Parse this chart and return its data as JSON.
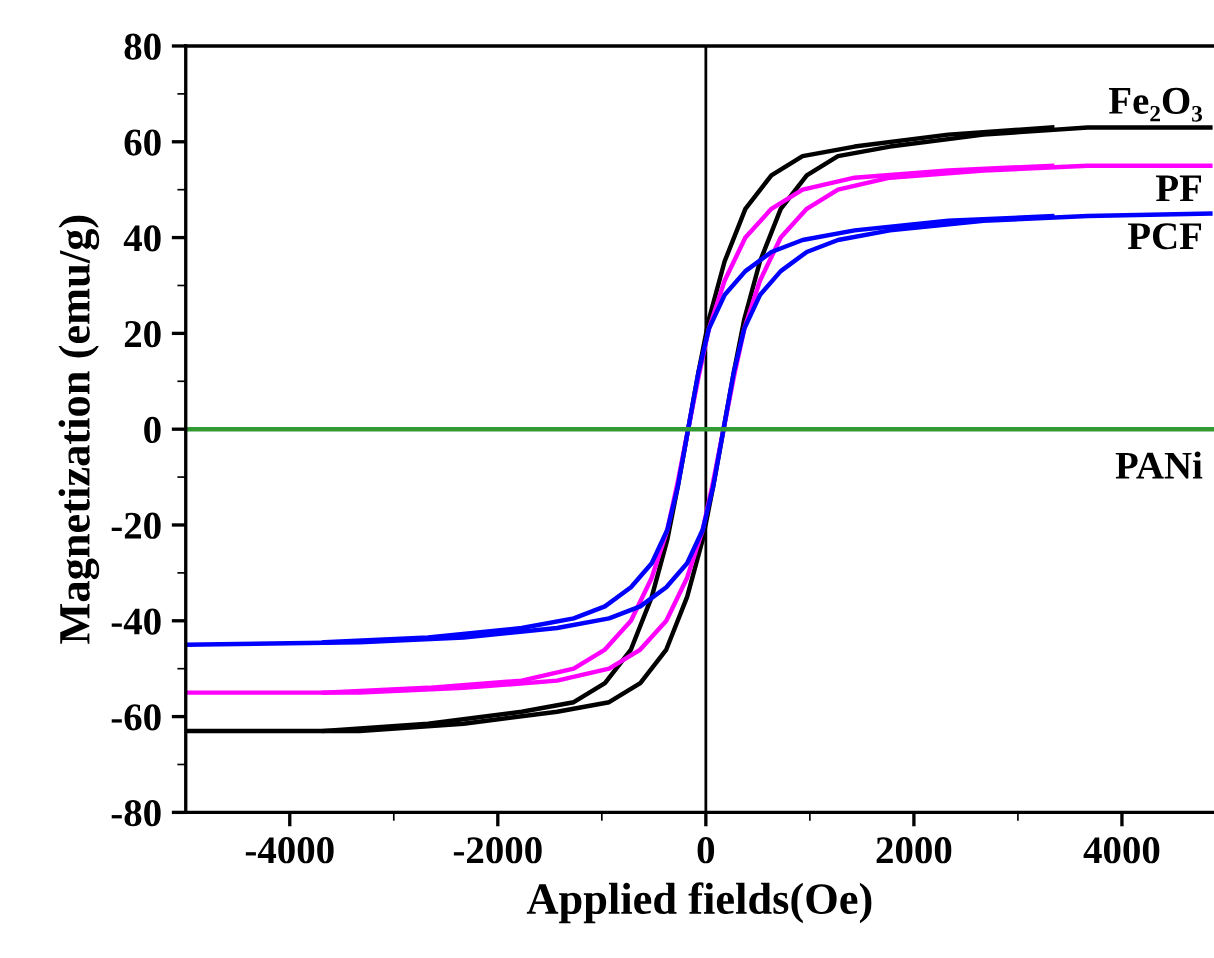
{
  "chart_data": {
    "type": "line",
    "xlabel": "Applied fields(Oe)",
    "ylabel": "Magnetization (emu/g)",
    "xlim": [
      -5000,
      4885
    ],
    "ylim": [
      -80,
      80
    ],
    "xticks": [
      -4000,
      -2000,
      0,
      2000,
      4000
    ],
    "yticks": [
      -80,
      -60,
      -40,
      -20,
      0,
      20,
      40,
      60,
      80
    ],
    "grid": false,
    "legend": false,
    "marker": "none",
    "line_style": "solid",
    "ref_lines": [
      {
        "axis": "x",
        "value": 0,
        "color": "#000000"
      }
    ],
    "series": [
      {
        "name": "Fe₂O₃",
        "color": "#000000",
        "x": [
          -5000,
          -3330,
          -2330,
          -1430,
          -930,
          -630,
          -380,
          -180,
          -30,
          70,
          170,
          270,
          370,
          520,
          720,
          970,
          1270,
          1770,
          2670,
          3670,
          4850
        ],
        "values": [
          -63,
          -63,
          -61.5,
          -59,
          -57,
          -53,
          -46,
          -35,
          -23,
          -12,
          0,
          12,
          23,
          35,
          46,
          53,
          57,
          59,
          61.5,
          63,
          63
        ]
      },
      {
        "color": "#000000",
        "x": [
          -3670,
          -2670,
          -1770,
          -1270,
          -970,
          -720,
          -520,
          -370,
          -270,
          -170,
          -70,
          30,
          180,
          380,
          630,
          930,
          1430,
          2330,
          3330
        ],
        "values": [
          -63,
          -61.5,
          -59,
          -57,
          -53,
          -46,
          -35,
          -23,
          -12,
          0,
          12,
          23,
          35,
          46,
          53,
          57,
          59,
          61.5,
          63
        ]
      },
      {
        "name": "PF",
        "color": "#ff00ff",
        "x": [
          -5000,
          -3330,
          -2330,
          -1430,
          -930,
          -630,
          -380,
          -180,
          -30,
          70,
          170,
          270,
          370,
          520,
          720,
          970,
          1270,
          1770,
          2670,
          3670,
          4850
        ],
        "values": [
          -55,
          -55,
          -54,
          -52.5,
          -50,
          -46,
          -40,
          -31,
          -21,
          -11,
          0,
          11,
          21,
          31,
          40,
          46,
          50,
          52.5,
          54,
          55,
          55
        ]
      },
      {
        "color": "#ff00ff",
        "x": [
          -3670,
          -2670,
          -1770,
          -1270,
          -970,
          -720,
          -520,
          -370,
          -270,
          -170,
          -70,
          30,
          180,
          380,
          630,
          930,
          1430,
          2330,
          3330
        ],
        "values": [
          -55,
          -54,
          -52.5,
          -50,
          -46,
          -40,
          -31,
          -21,
          -11,
          0,
          11,
          21,
          31,
          40,
          46,
          50,
          52.5,
          54,
          55
        ]
      },
      {
        "name": "PCF",
        "color": "#0000ff",
        "x": [
          -5000,
          -3330,
          -2330,
          -1430,
          -930,
          -630,
          -380,
          -180,
          -30,
          70,
          170,
          270,
          370,
          520,
          720,
          970,
          1270,
          1770,
          2670,
          3670,
          4850
        ],
        "values": [
          -45,
          -44.5,
          -43.5,
          -41.5,
          -39.5,
          -37,
          -33,
          -28,
          -21,
          -12,
          0,
          12,
          21,
          28,
          33,
          37,
          39.5,
          41.5,
          43.5,
          44.5,
          45
        ]
      },
      {
        "color": "#0000ff",
        "x": [
          -3670,
          -2670,
          -1770,
          -1270,
          -970,
          -720,
          -520,
          -370,
          -270,
          -170,
          -70,
          30,
          180,
          380,
          630,
          930,
          1430,
          2330,
          3330
        ],
        "values": [
          -44.5,
          -43.5,
          -41.5,
          -39.5,
          -37,
          -33,
          -28,
          -21,
          -12,
          0,
          12,
          21,
          28,
          33,
          37,
          39.5,
          41.5,
          43.5,
          44.5
        ]
      },
      {
        "name": "PANi",
        "color": "#339933",
        "x": [
          -5000,
          4885
        ],
        "values": [
          0,
          0
        ]
      }
    ]
  }
}
